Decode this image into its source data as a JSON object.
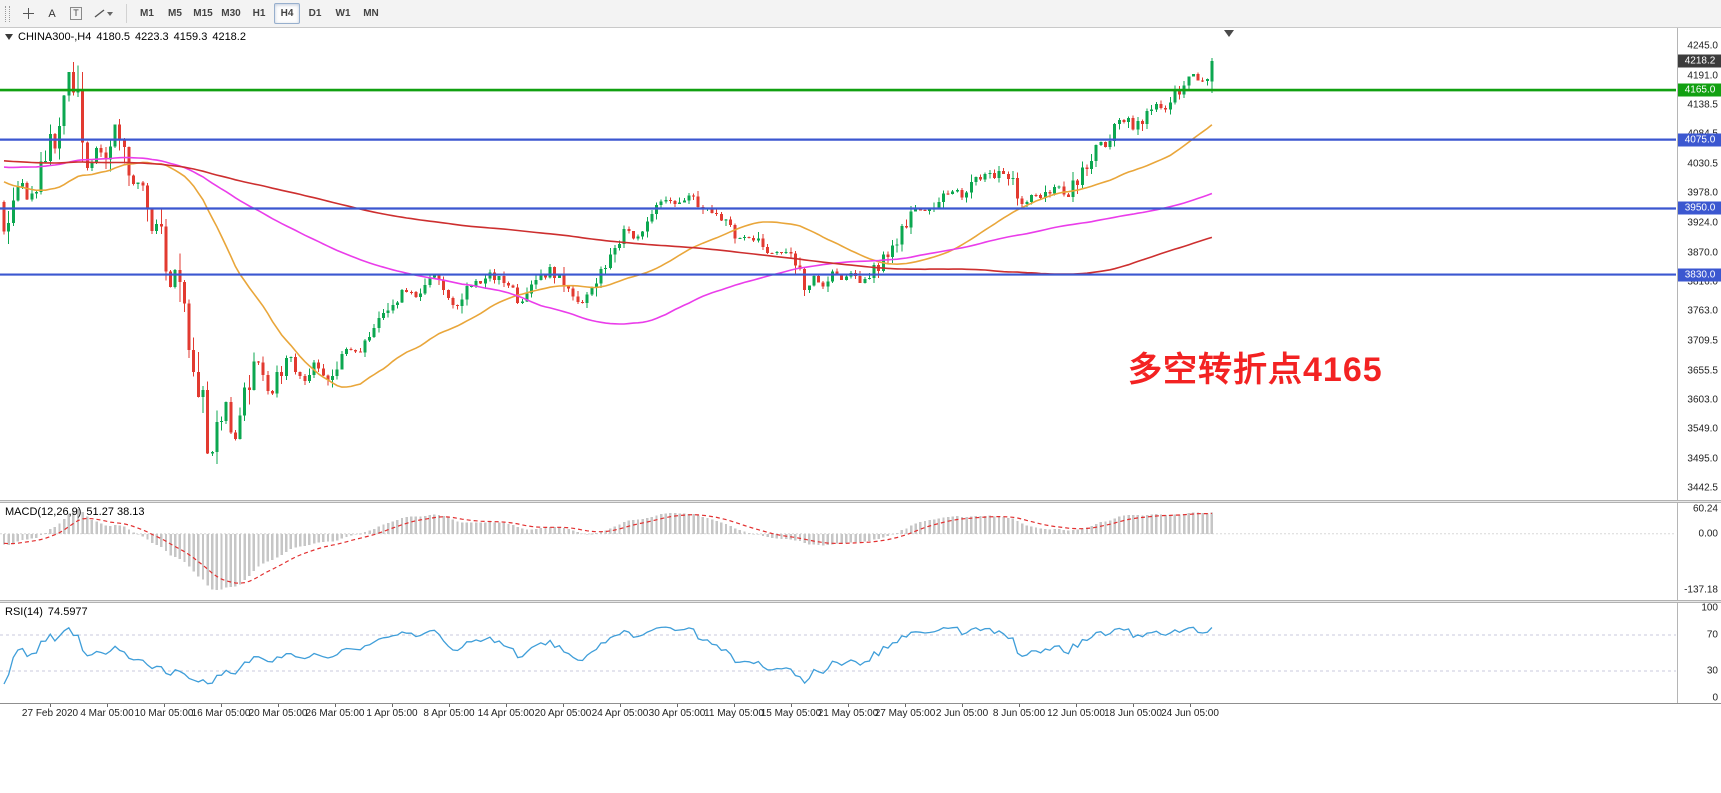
{
  "toolbar": {
    "tools": [
      {
        "id": "crosshair"
      },
      {
        "id": "text",
        "label": "A"
      },
      {
        "id": "text-label",
        "label": "T"
      },
      {
        "id": "draw-tools"
      }
    ],
    "timeframes": [
      "M1",
      "M5",
      "M15",
      "M30",
      "H1",
      "H4",
      "D1",
      "W1",
      "MN"
    ],
    "active_timeframe": "H4"
  },
  "chart_header": {
    "symbol_timeframe": "CHINA300-,H4",
    "open": "4180.5",
    "high": "4223.3",
    "low": "4159.3",
    "close": "4218.2"
  },
  "annotation": {
    "text": "多空转折点4165",
    "color": "#f32222"
  },
  "chart_data": {
    "type": "candlestick",
    "symbol": "CHINA300-",
    "timeframe": "H4",
    "ohlc": {
      "open": 4180.5,
      "high": 4223.3,
      "low": 4159.3,
      "close": 4218.2
    },
    "y_axis": {
      "top": 4245.0,
      "bottom": 3442.5,
      "ticks": [
        "4245.0",
        "4191.0",
        "4138.5",
        "4084.5",
        "4030.5",
        "3978.0",
        "3924.0",
        "3870.0",
        "3816.0",
        "3763.0",
        "3709.5",
        "3655.5",
        "3603.0",
        "3549.0",
        "3495.0",
        "3442.5"
      ]
    },
    "x_axis": {
      "labels": [
        "27 Feb 2020",
        "4 Mar 05:00",
        "10 Mar 05:00",
        "16 Mar 05:00",
        "20 Mar 05:00",
        "26 Mar 05:00",
        "1 Apr 05:00",
        "8 Apr 05:00",
        "14 Apr 05:00",
        "20 Apr 05:00",
        "24 Apr 05:00",
        "30 Apr 05:00",
        "11 May 05:00",
        "15 May 05:00",
        "21 May 05:00",
        "27 May 05:00",
        "2 Jun 05:00",
        "8 Jun 05:00",
        "12 Jun 05:00",
        "18 Jun 05:00",
        "24 Jun 05:00"
      ]
    },
    "last_price": {
      "label": "4218.2",
      "value": 4218.2,
      "badge_color": "#3c3c3c"
    },
    "levels": [
      {
        "label": "4165.0",
        "value": 4165.0,
        "color": "#11a011"
      },
      {
        "label": "4075.0",
        "value": 4075.0,
        "color": "#3b57d0"
      },
      {
        "label": "3950.0",
        "value": 3950.0,
        "color": "#3b57d0"
      },
      {
        "label": "3830.0",
        "value": 3830.0,
        "color": "#3b57d0"
      }
    ],
    "candle_colors": {
      "up": "#0ca750",
      "down": "#e23a30"
    },
    "moving_averages": [
      {
        "period": 34,
        "color": "#e9a63a",
        "name": "ma-34"
      },
      {
        "period": 100,
        "color": "#ea3dea",
        "name": "ma-100"
      },
      {
        "period": 200,
        "color": "#cd2f2f",
        "name": "ma-200"
      }
    ],
    "pre_path": [
      [
        -980,
        4040
      ],
      [
        -840,
        4090
      ],
      [
        -700,
        3985
      ],
      [
        -560,
        4105
      ],
      [
        -430,
        3955
      ],
      [
        -310,
        4045
      ],
      [
        -200,
        4110
      ],
      [
        -120,
        4030
      ],
      [
        -50,
        3985
      ],
      [
        -5,
        3952
      ]
    ],
    "price_path": [
      [
        0,
        3950
      ],
      [
        6,
        3905
      ],
      [
        14,
        3980
      ],
      [
        20,
        4000
      ],
      [
        30,
        3958
      ],
      [
        40,
        4020
      ],
      [
        55,
        4085
      ],
      [
        66,
        4195
      ],
      [
        72,
        4220
      ],
      [
        78,
        4120
      ],
      [
        85,
        4020
      ],
      [
        95,
        4060
      ],
      [
        105,
        4035
      ],
      [
        112,
        4090
      ],
      [
        118,
        4108
      ],
      [
        125,
        4048
      ],
      [
        132,
        3990
      ],
      [
        138,
        4012
      ],
      [
        145,
        3952
      ],
      [
        152,
        3906
      ],
      [
        158,
        3936
      ],
      [
        164,
        3862
      ],
      [
        170,
        3802
      ],
      [
        176,
        3848
      ],
      [
        183,
        3762
      ],
      [
        190,
        3702
      ],
      [
        198,
        3642
      ],
      [
        205,
        3562
      ],
      [
        212,
        3502
      ],
      [
        218,
        3548
      ],
      [
        224,
        3612
      ],
      [
        230,
        3562
      ],
      [
        236,
        3522
      ],
      [
        243,
        3582
      ],
      [
        250,
        3640
      ],
      [
        258,
        3678
      ],
      [
        265,
        3642
      ],
      [
        272,
        3612
      ],
      [
        280,
        3652
      ],
      [
        288,
        3678
      ],
      [
        296,
        3658
      ],
      [
        305,
        3642
      ],
      [
        315,
        3668
      ],
      [
        325,
        3642
      ],
      [
        335,
        3662
      ],
      [
        345,
        3698
      ],
      [
        358,
        3688
      ],
      [
        368,
        3712
      ],
      [
        380,
        3742
      ],
      [
        392,
        3780
      ],
      [
        405,
        3800
      ],
      [
        418,
        3792
      ],
      [
        425,
        3812
      ],
      [
        435,
        3830
      ],
      [
        445,
        3800
      ],
      [
        455,
        3772
      ],
      [
        465,
        3800
      ],
      [
        475,
        3820
      ],
      [
        482,
        3812
      ],
      [
        492,
        3830
      ],
      [
        502,
        3820
      ],
      [
        512,
        3800
      ],
      [
        522,
        3782
      ],
      [
        532,
        3802
      ],
      [
        541,
        3820
      ],
      [
        550,
        3840
      ],
      [
        560,
        3822
      ],
      [
        570,
        3800
      ],
      [
        580,
        3772
      ],
      [
        590,
        3790
      ],
      [
        596,
        3812
      ],
      [
        605,
        3850
      ],
      [
        615,
        3880
      ],
      [
        625,
        3910
      ],
      [
        635,
        3892
      ],
      [
        645,
        3922
      ],
      [
        652,
        3940
      ],
      [
        660,
        3958
      ],
      [
        668,
        3975
      ],
      [
        676,
        3950
      ],
      [
        684,
        3962
      ],
      [
        692,
        3972
      ],
      [
        700,
        3952
      ],
      [
        712,
        3945
      ],
      [
        722,
        3930
      ],
      [
        732,
        3912
      ],
      [
        742,
        3892
      ],
      [
        752,
        3902
      ],
      [
        760,
        3882
      ],
      [
        766,
        3870
      ],
      [
        776,
        3866
      ],
      [
        786,
        3872
      ],
      [
        796,
        3852
      ],
      [
        806,
        3802
      ],
      [
        816,
        3822
      ],
      [
        823,
        3812
      ],
      [
        833,
        3832
      ],
      [
        843,
        3822
      ],
      [
        853,
        3842
      ],
      [
        863,
        3812
      ],
      [
        873,
        3832
      ],
      [
        879,
        3852
      ],
      [
        889,
        3872
      ],
      [
        899,
        3902
      ],
      [
        909,
        3932
      ],
      [
        919,
        3952
      ],
      [
        929,
        3942
      ],
      [
        935,
        3956
      ],
      [
        945,
        3972
      ],
      [
        955,
        3986
      ],
      [
        965,
        3972
      ],
      [
        975,
        4002
      ],
      [
        985,
        4012
      ],
      [
        993,
        4002
      ],
      [
        1003,
        4022
      ],
      [
        1013,
        3992
      ],
      [
        1023,
        3962
      ],
      [
        1033,
        3976
      ],
      [
        1043,
        3962
      ],
      [
        1049,
        3982
      ],
      [
        1059,
        3992
      ],
      [
        1069,
        3972
      ],
      [
        1079,
        4012
      ],
      [
        1089,
        4042
      ],
      [
        1099,
        4072
      ],
      [
        1105,
        4062
      ],
      [
        1115,
        4092
      ],
      [
        1125,
        4112
      ],
      [
        1135,
        4092
      ],
      [
        1145,
        4122
      ],
      [
        1155,
        4142
      ],
      [
        1165,
        4122
      ],
      [
        1175,
        4152
      ],
      [
        1185,
        4172
      ],
      [
        1195,
        4192
      ],
      [
        1203,
        4178
      ],
      [
        1212,
        4218
      ]
    ],
    "indicators": {
      "macd": {
        "title": "MACD(12,26,9)",
        "values": "51.27 38.13",
        "fast": 12,
        "slow": 26,
        "signal": 9,
        "scale": [
          "60.24",
          "0.00",
          "-137.18"
        ],
        "histogram_color": "#c6c6c6",
        "signal_color": "#e23030"
      },
      "rsi": {
        "title": "RSI(14)",
        "value": "74.5977",
        "period": 14,
        "scale": [
          "100",
          "70",
          "30",
          "0"
        ],
        "levels": [
          70,
          30
        ],
        "line_color": "#3f9ed9"
      }
    }
  }
}
